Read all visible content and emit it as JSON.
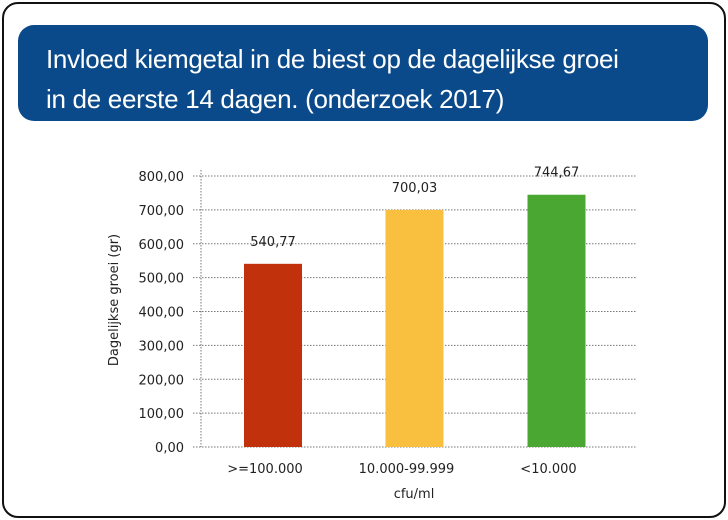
{
  "title": {
    "line1": "Invloed kiemgetal in de biest op de dagelijkse groei",
    "line2": "in de eerste 14 dagen. (onderzoek 2017)"
  },
  "chart_data": {
    "type": "bar",
    "title": "Invloed kiemgetal in de biest op de dagelijkse groei in de eerste 14 dagen. (onderzoek 2017)",
    "categories": [
      ">=100.000",
      "10.000-99.999",
      "<10.000"
    ],
    "values": [
      540.77,
      700.03,
      744.67
    ],
    "value_labels": [
      "540,77",
      "700,03",
      "744,67"
    ],
    "colors": [
      "#c1310c",
      "#f9c03f",
      "#4aa832"
    ],
    "xlabel": "cfu/ml",
    "ylabel": "Dagelijkse groei (gr)",
    "ylim": [
      0,
      800
    ],
    "yticks": [
      0,
      100,
      200,
      300,
      400,
      500,
      600,
      700,
      800
    ],
    "ytick_labels": [
      "0,00",
      "100,00",
      "200,00",
      "300,00",
      "400,00",
      "500,00",
      "600,00",
      "700,00",
      "800,00"
    ],
    "grid": true,
    "title_box_color": "#0b4a8a"
  }
}
